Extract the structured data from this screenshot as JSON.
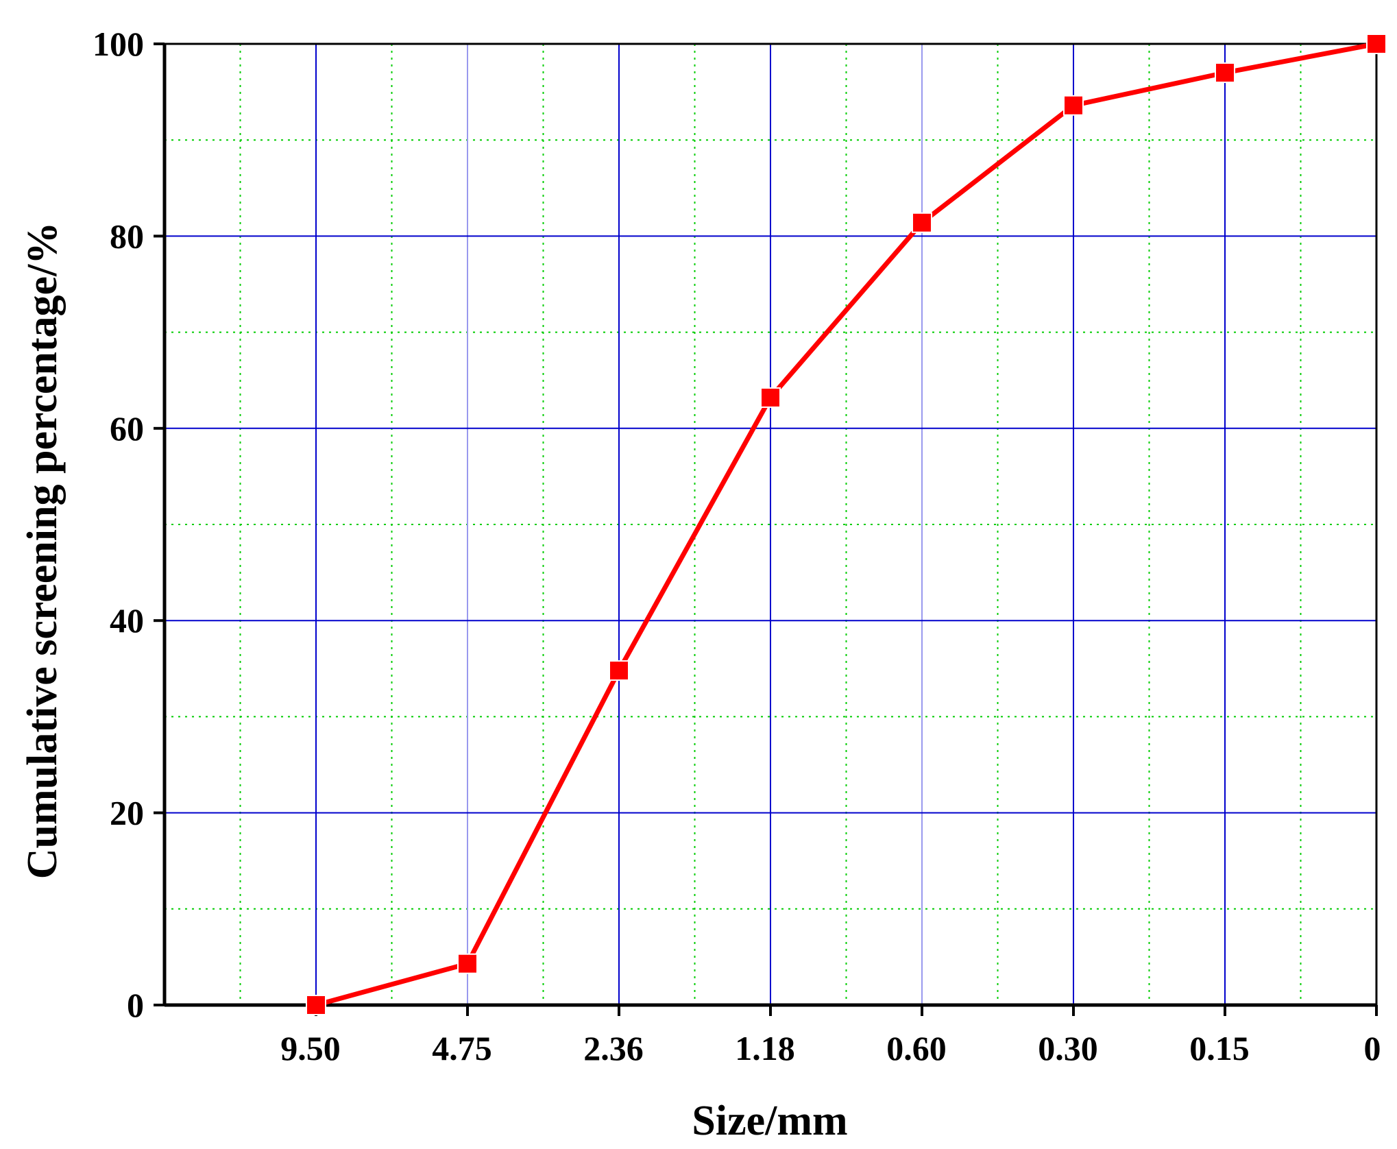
{
  "chart_data": {
    "type": "line",
    "title": "",
    "xlabel": "Size/mm",
    "ylabel": "Cumulative screening percentage/%",
    "categories": [
      "9.50",
      "4.75",
      "2.36",
      "1.18",
      "0.60",
      "0.30",
      "0.15",
      "0"
    ],
    "series": [
      {
        "values": [
          0,
          4.3,
          34.8,
          63.2,
          81.4,
          93.6,
          97.0,
          100
        ]
      }
    ],
    "ylim": [
      0,
      100
    ],
    "yticks": [
      "0",
      "20",
      "40",
      "60",
      "80",
      "100"
    ],
    "grid": "on",
    "legend": "none",
    "colors": {
      "series_line": "#ff0000",
      "marker": "#ff0000",
      "major_grid": "#0000cc",
      "minor_grid": "#00cc00",
      "axis": "#000000"
    },
    "marker": "square"
  }
}
